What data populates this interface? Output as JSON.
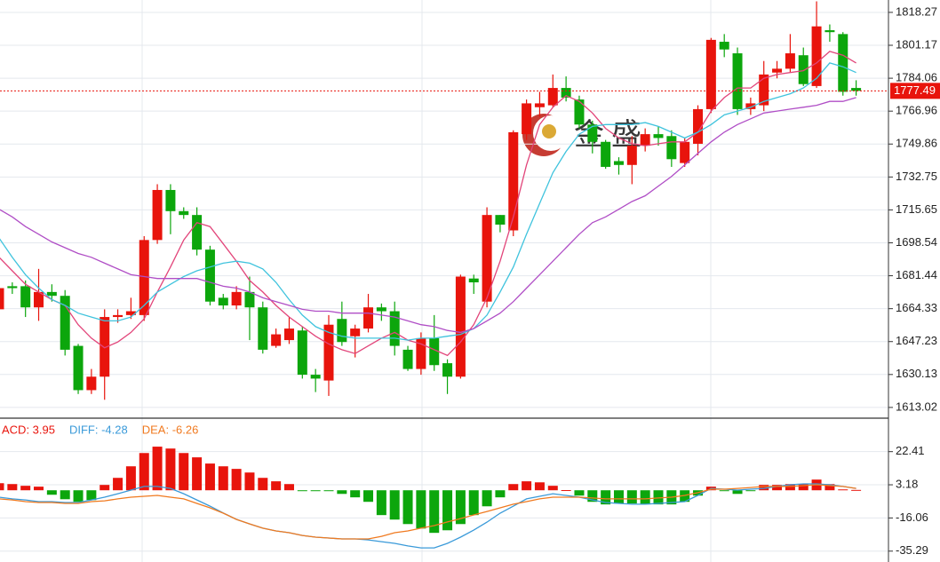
{
  "chart_data": [
    {
      "type": "candlestick",
      "up_color": "#e8140c",
      "down_color": "#0ca60c",
      "open": [
        1664,
        1676,
        1676,
        1665,
        1673,
        1671,
        1645,
        1622,
        1629,
        1660,
        1661,
        1661,
        1700,
        1726,
        1715,
        1713,
        1695,
        1670,
        1666,
        1673,
        1665,
        1645,
        1648,
        1653,
        1630,
        1627,
        1659,
        1650,
        1654,
        1665,
        1663,
        1643,
        1633,
        1649,
        1636,
        1629,
        1680,
        1668,
        1713,
        1705,
        1755,
        1769,
        1770,
        1779,
        1773,
        1760,
        1751,
        1741,
        1739,
        1749,
        1755,
        1754,
        1740,
        1750,
        1768,
        1803,
        1797,
        1768,
        1770,
        1787,
        1789,
        1796,
        1780,
        1809,
        1807,
        1779
      ],
      "high": [
        1677,
        1678,
        1679,
        1685,
        1677,
        1674,
        1646,
        1633,
        1664,
        1664,
        1670,
        1702,
        1729,
        1729,
        1717,
        1717,
        1697,
        1672,
        1676,
        1681,
        1668,
        1654,
        1660,
        1655,
        1633,
        1661,
        1668,
        1656,
        1672,
        1667,
        1668,
        1645,
        1652,
        1661,
        1638,
        1682,
        1682,
        1717,
        1713,
        1757,
        1773,
        1777,
        1786,
        1785,
        1775,
        1762,
        1752,
        1743,
        1754,
        1758,
        1759,
        1757,
        1753,
        1770,
        1805,
        1807,
        1800,
        1774,
        1793,
        1793,
        1807,
        1800,
        1824,
        1812,
        1808,
        1783
      ],
      "low": [
        1660,
        1672,
        1660,
        1658,
        1668,
        1640,
        1620,
        1620,
        1617,
        1657,
        1659,
        1658,
        1698,
        1703,
        1711,
        1692,
        1666,
        1664,
        1664,
        1648,
        1641,
        1644,
        1646,
        1628,
        1621,
        1619,
        1645,
        1639,
        1652,
        1658,
        1640,
        1632,
        1630,
        1632,
        1620,
        1628,
        1672,
        1665,
        1704,
        1702,
        1752,
        1764,
        1769,
        1772,
        1758,
        1745,
        1737,
        1734,
        1729,
        1746,
        1749,
        1738,
        1738,
        1744,
        1766,
        1795,
        1765,
        1765,
        1767,
        1784,
        1787,
        1780,
        1779,
        1803,
        1775,
        1775
      ],
      "close": [
        1675,
        1675,
        1665,
        1673,
        1671,
        1643,
        1622,
        1629,
        1660,
        1661,
        1663,
        1700,
        1726,
        1715,
        1713,
        1695,
        1668,
        1666,
        1673,
        1665,
        1643,
        1651,
        1654,
        1630,
        1628,
        1656,
        1647,
        1654,
        1665,
        1663,
        1645,
        1633,
        1649,
        1635,
        1629,
        1681,
        1678,
        1713,
        1708,
        1756,
        1771,
        1771,
        1779,
        1774,
        1760,
        1751,
        1738,
        1739,
        1749,
        1755,
        1753,
        1742,
        1751,
        1768,
        1804,
        1799,
        1768,
        1771,
        1786,
        1789,
        1797,
        1781,
        1811,
        1808,
        1777,
        1777.5
      ],
      "lines": [
        {
          "color": "#e2457a",
          "values": [
            1691,
            1684,
            1677,
            1673,
            1669,
            1666,
            1656,
            1649,
            1644,
            1647,
            1652,
            1659,
            1673,
            1686,
            1700,
            1709,
            1707,
            1698,
            1689,
            1679,
            1673,
            1666,
            1660,
            1655,
            1650,
            1646,
            1643,
            1641,
            1645,
            1649,
            1652,
            1648,
            1646,
            1643,
            1640,
            1647,
            1656,
            1670,
            1689,
            1712,
            1739,
            1760,
            1769,
            1775,
            1772,
            1766,
            1758,
            1753,
            1750,
            1749,
            1750,
            1751,
            1751,
            1756,
            1767,
            1774,
            1779,
            1779,
            1784,
            1786,
            1787,
            1788,
            1792,
            1798,
            1796,
            1792
          ]
        },
        {
          "color": "#3fc3dd",
          "values": [
            1701,
            1691,
            1682,
            1675,
            1669,
            1666,
            1662,
            1660,
            1658,
            1658,
            1660,
            1666,
            1673,
            1677,
            1681,
            1684,
            1686,
            1688,
            1689,
            1688,
            1685,
            1678,
            1669,
            1661,
            1655,
            1652,
            1650,
            1649,
            1649,
            1649,
            1649,
            1648,
            1649,
            1649,
            1650,
            1651,
            1654,
            1661,
            1673,
            1686,
            1703,
            1719,
            1735,
            1746,
            1755,
            1759,
            1760,
            1760,
            1760,
            1761,
            1759,
            1756,
            1753,
            1756,
            1760,
            1765,
            1767,
            1769,
            1772,
            1774,
            1776,
            1779,
            1784,
            1792,
            1790,
            1787
          ]
        },
        {
          "color": "#b04ec6",
          "values": [
            1716,
            1712,
            1707,
            1703,
            1699,
            1696,
            1693,
            1691,
            1688,
            1685,
            1682,
            1681,
            1680,
            1680,
            1680,
            1680,
            1678,
            1676,
            1675,
            1673,
            1670,
            1668,
            1666,
            1664,
            1663,
            1663,
            1662,
            1662,
            1662,
            1661,
            1660,
            1658,
            1656,
            1655,
            1653,
            1652,
            1654,
            1658,
            1662,
            1668,
            1675,
            1682,
            1689,
            1696,
            1703,
            1709,
            1712,
            1716,
            1720,
            1723,
            1728,
            1733,
            1739,
            1745,
            1751,
            1756,
            1760,
            1763,
            1766,
            1767,
            1768,
            1769,
            1770,
            1772,
            1772,
            1774
          ]
        }
      ],
      "last_price": 1777.49,
      "last_price_color": "#e8140c",
      "ylim": [
        1607.9,
        1824.7
      ],
      "yticks": [
        1818.27,
        1801.17,
        1784.06,
        1766.96,
        1749.86,
        1732.75,
        1715.65,
        1698.54,
        1681.44,
        1664.33,
        1647.23,
        1630.13,
        1613.02
      ],
      "grid": true,
      "watermark": "金盛"
    },
    {
      "type": "macd",
      "labels": [
        {
          "text": "ACD: 3.95",
          "color": "#e8140c"
        },
        {
          "text": "DIFF: -4.28",
          "color": "#3a9ad9"
        },
        {
          "text": "DEA: -6.26",
          "color": "#f07a20"
        }
      ],
      "up_color": "#e8140c",
      "down_color": "#0ca60c",
      "histogram": [
        4.1,
        3.6,
        2.6,
        2.1,
        -2.6,
        -5.2,
        -6.7,
        -5.7,
        3.1,
        7.2,
        13.9,
        21.6,
        25.3,
        24.2,
        21.6,
        19.1,
        15.5,
        13.9,
        12.4,
        10.3,
        7.2,
        5.2,
        3.6,
        -0.4,
        -0.4,
        -0.2,
        -2.1,
        -4.1,
        -6.7,
        -14.4,
        -17.0,
        -19.6,
        -22.2,
        -24.7,
        -23.2,
        -19.6,
        -14.4,
        -9.3,
        -4.1,
        3.6,
        5.2,
        4.6,
        2.6,
        0.1,
        -3.1,
        -6.7,
        -8.2,
        -7.7,
        -7.7,
        -8.2,
        -8.2,
        -8.2,
        -6.7,
        -3.1,
        2.1,
        -0.5,
        -2.1,
        -0.5,
        3.1,
        3.1,
        3.6,
        3.6,
        6.2,
        3.6,
        0.5,
        0.2
      ],
      "diff": [
        -4.0,
        -5.0,
        -5.6,
        -6.6,
        -6.6,
        -7.1,
        -7.1,
        -5.6,
        -4.0,
        -2.0,
        0.1,
        2.2,
        2.2,
        1.1,
        -2.0,
        -5.6,
        -9.2,
        -13.2,
        -16.9,
        -19.5,
        -22.0,
        -23.6,
        -24.6,
        -26.2,
        -27.2,
        -27.7,
        -28.2,
        -28.2,
        -28.8,
        -29.8,
        -30.8,
        -32.3,
        -33.4,
        -33.4,
        -30.8,
        -27.2,
        -23.1,
        -18.5,
        -13.3,
        -9.2,
        -5.0,
        -3.5,
        -2.0,
        -3.0,
        -4.0,
        -5.6,
        -7.1,
        -7.6,
        -8.1,
        -8.1,
        -7.6,
        -7.1,
        -6.6,
        -3.0,
        1.1,
        0.6,
        0.1,
        0.6,
        1.1,
        2.2,
        3.2,
        3.7,
        3.7,
        3.2,
        2.2,
        1.1
      ],
      "dea": [
        -5.0,
        -5.6,
        -6.6,
        -7.1,
        -7.1,
        -7.6,
        -7.6,
        -6.6,
        -6.1,
        -5.0,
        -4.0,
        -3.5,
        -3.0,
        -4.0,
        -5.0,
        -7.6,
        -10.2,
        -13.3,
        -16.9,
        -19.5,
        -22.0,
        -23.6,
        -24.6,
        -26.2,
        -27.2,
        -27.7,
        -28.2,
        -28.2,
        -28.2,
        -26.7,
        -24.6,
        -23.6,
        -22.0,
        -20.5,
        -18.4,
        -16.4,
        -14.3,
        -12.3,
        -10.2,
        -8.1,
        -6.6,
        -5.0,
        -4.0,
        -4.0,
        -4.0,
        -4.5,
        -5.0,
        -5.0,
        -5.0,
        -5.0,
        -4.5,
        -4.0,
        -3.0,
        -1.4,
        0.6,
        0.6,
        1.1,
        1.6,
        2.2,
        2.2,
        2.2,
        2.7,
        3.2,
        2.7,
        2.2,
        1.1
      ],
      "diff_color": "#3a9ad9",
      "dea_color": "#f07a20",
      "ylim": [
        -41.6,
        41.3
      ],
      "yticks": [
        22.41,
        3.18,
        -16.06,
        -35.29
      ],
      "grid": true
    }
  ]
}
